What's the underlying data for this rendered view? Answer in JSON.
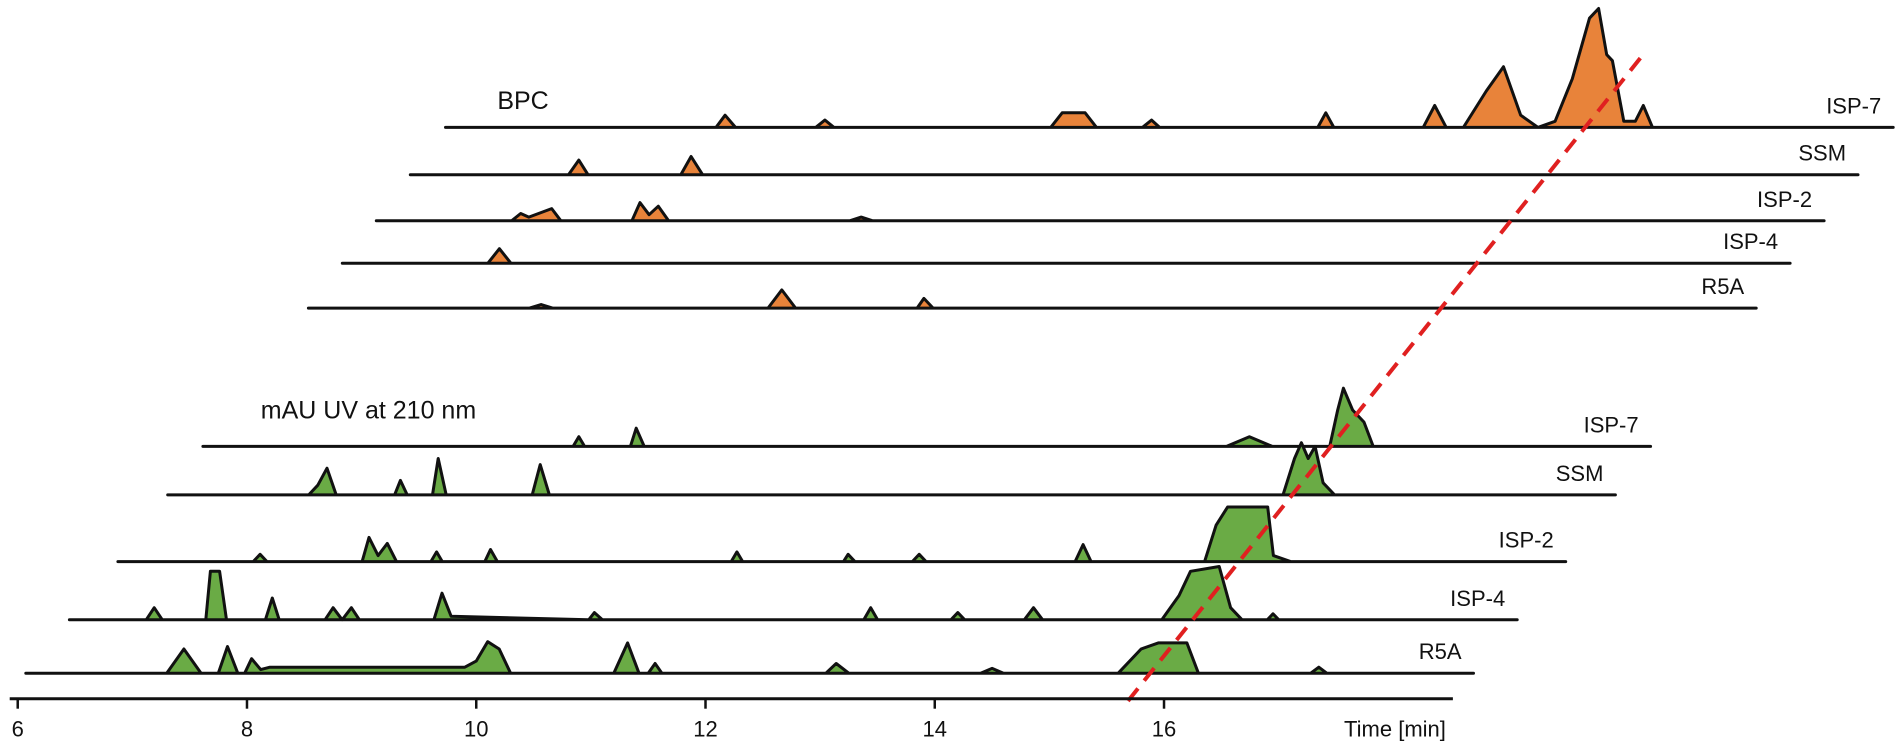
{
  "chart_data": {
    "type": "area",
    "xlabel": "Time [min]",
    "xlim": [
      5.93,
      18.52
    ],
    "xticks": [
      6,
      8,
      10,
      12,
      14,
      16
    ],
    "ylim": [
      0,
      100
    ],
    "panels": [
      {
        "label": "BPC",
        "color": "#e8833a",
        "series": [
          {
            "name": "ISP-7",
            "x": [
              6.07,
              8.43,
              8.51,
              8.6,
              9.3,
              9.38,
              9.46,
              11.35,
              11.45,
              11.65,
              11.75,
              12.15,
              12.23,
              12.3,
              13.68,
              13.75,
              13.82,
              14.6,
              14.7,
              14.8,
              14.95,
              15.15,
              15.3,
              15.45,
              15.6,
              15.75,
              15.9,
              16.05,
              16.13,
              16.2,
              16.25,
              16.35,
              16.45,
              16.52,
              16.6,
              18.7
            ],
            "values": [
              0,
              0,
              10,
              0,
              0,
              6,
              0,
              0,
              12,
              12,
              0,
              0,
              6,
              0,
              0,
              12,
              0,
              0,
              18,
              0,
              0,
              30,
              50,
              10,
              0,
              5,
              40,
              90,
              98,
              60,
              55,
              5,
              5,
              18,
              0,
              0
            ]
          },
          {
            "name": "SSM",
            "x": [
              6.07,
              7.45,
              7.54,
              7.62,
              8.43,
              8.52,
              8.62,
              18.7
            ],
            "values": [
              0,
              0,
              12,
              0,
              0,
              15,
              0,
              0
            ]
          },
          {
            "name": "ISP-2",
            "x": [
              6.07,
              7.25,
              7.33,
              7.4,
              7.6,
              7.68,
              8.3,
              8.37,
              8.45,
              8.53,
              8.62,
              10.2,
              10.3,
              10.4,
              18.7
            ],
            "values": [
              0,
              0,
              6,
              3,
              10,
              0,
              0,
              15,
              5,
              12,
              0,
              0,
              3,
              0,
              0
            ]
          },
          {
            "name": "ISP-4",
            "x": [
              6.07,
              7.34,
              7.44,
              7.54,
              18.7
            ],
            "values": [
              0,
              0,
              12,
              0,
              0
            ]
          },
          {
            "name": "R5A",
            "x": [
              6.07,
              8.0,
              8.1,
              8.2,
              10.08,
              10.2,
              10.32,
              11.38,
              11.44,
              11.52,
              18.7
            ],
            "values": [
              0,
              0,
              3,
              0,
              0,
              15,
              0,
              0,
              8,
              0,
              0
            ]
          }
        ]
      },
      {
        "label": "mAU UV at 210 nm",
        "color": "#6aab45",
        "series": [
          {
            "name": "ISP-7",
            "x": [
              6.07,
              9.3,
              9.35,
              9.4,
              9.8,
              9.85,
              9.92,
              15.0,
              15.2,
              15.4,
              15.9,
              15.97,
              16.02,
              16.1,
              16.2,
              16.28,
              18.7
            ],
            "values": [
              0,
              0,
              8,
              0,
              0,
              15,
              0,
              0,
              8,
              0,
              0,
              30,
              48,
              30,
              20,
              0,
              0
            ]
          },
          {
            "name": "SSM",
            "x": [
              6.07,
              7.3,
              7.38,
              7.46,
              7.54,
              8.05,
              8.1,
              8.16,
              8.38,
              8.43,
              8.5,
              9.25,
              9.32,
              9.4,
              15.8,
              15.9,
              15.96,
              16.02,
              16.08,
              16.15,
              16.25,
              18.7
            ],
            "values": [
              0,
              0,
              8,
              22,
              0,
              0,
              12,
              0,
              0,
              30,
              0,
              0,
              25,
              0,
              0,
              30,
              43,
              30,
              40,
              10,
              0,
              0
            ]
          },
          {
            "name": "ISP-2",
            "x": [
              6.07,
              7.25,
              7.31,
              7.37,
              8.2,
              8.26,
              8.34,
              8.42,
              8.5,
              8.8,
              8.85,
              8.9,
              9.27,
              9.32,
              9.38,
              11.42,
              11.47,
              11.52,
              12.4,
              12.44,
              12.5,
              13.0,
              13.06,
              13.12,
              14.42,
              14.49,
              14.56,
              15.55,
              15.65,
              15.75,
              16.1,
              16.15,
              16.3,
              18.7
            ],
            "values": [
              0,
              0,
              6,
              0,
              0,
              20,
              5,
              15,
              0,
              0,
              8,
              0,
              0,
              10,
              0,
              0,
              8,
              0,
              0,
              6,
              0,
              0,
              6,
              0,
              0,
              14,
              0,
              0,
              30,
              45,
              45,
              5,
              0,
              0
            ]
          },
          {
            "name": "ISP-4",
            "x": [
              6.07,
              6.74,
              6.81,
              6.88,
              7.26,
              7.3,
              7.38,
              7.44,
              7.78,
              7.84,
              7.9,
              8.3,
              8.37,
              8.45,
              8.53,
              8.6,
              9.25,
              9.32,
              9.4,
              10.6,
              10.65,
              10.72,
              13.0,
              13.06,
              13.12,
              13.76,
              13.82,
              13.88,
              14.4,
              14.48,
              14.56,
              15.6,
              15.75,
              15.85,
              16.1,
              16.2,
              16.3,
              16.52,
              16.57,
              16.62,
              18.7
            ],
            "values": [
              0,
              0,
              10,
              0,
              0,
              40,
              40,
              0,
              0,
              18,
              0,
              0,
              10,
              0,
              10,
              0,
              0,
              22,
              3,
              0,
              6,
              0,
              0,
              10,
              0,
              0,
              6,
              0,
              0,
              10,
              0,
              0,
              20,
              40,
              44,
              10,
              0,
              0,
              5,
              0,
              0
            ]
          },
          {
            "name": "R5A",
            "x": [
              6.07,
              7.3,
              7.45,
              7.6,
              7.75,
              7.83,
              7.92,
              7.98,
              8.04,
              8.12,
              8.2,
              9.0,
              9.9,
              10.0,
              10.1,
              10.2,
              10.3,
              11.2,
              11.32,
              11.42,
              11.5,
              11.56,
              11.62,
              13.05,
              13.14,
              13.25,
              14.4,
              14.5,
              14.6,
              15.6,
              15.8,
              15.95,
              16.2,
              16.3,
              17.28,
              17.35,
              17.42,
              18.7
            ],
            "values": [
              0,
              0,
              20,
              0,
              0,
              22,
              0,
              0,
              12,
              3,
              5,
              5,
              5,
              10,
              26,
              20,
              0,
              0,
              25,
              0,
              0,
              8,
              0,
              0,
              8,
              0,
              0,
              4,
              0,
              0,
              20,
              25,
              25,
              0,
              0,
              5,
              0,
              0
            ]
          }
        ]
      }
    ]
  }
}
